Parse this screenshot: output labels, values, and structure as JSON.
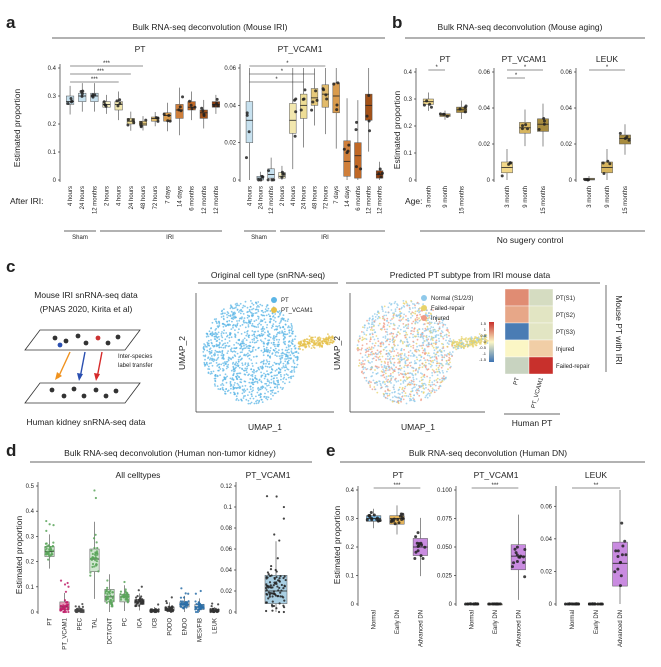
{
  "panels": {
    "a": {
      "letter": "a",
      "title": "Bulk RNA-seq deconvolution (Mouse IRI)",
      "ylabel": "Estimated proportion",
      "row_label": "After IRI:",
      "sub": [
        "PT",
        "PT_VCAM1"
      ],
      "groups": [
        "Sham",
        "IRI"
      ]
    },
    "b": {
      "letter": "b",
      "title": "Bulk RNA-seq deconvolution (Mouse aging)",
      "ylabel": "Estimated proportion",
      "row_label": "Age:",
      "sub": [
        "PT",
        "PT_VCAM1",
        "LEUK"
      ],
      "footer": "No sugery control"
    },
    "c": {
      "letter": "c",
      "left_title": "Mouse IRI snRNA-seq data",
      "left_sub": "(PNAS 2020, Kirita et al)",
      "transfer": "Inter-species label transfer",
      "transfer_lines": [
        "Inter-species",
        "label transfer"
      ],
      "bottom_label": "Human kidney snRNA-seq data",
      "umap1_title": "Original cell type (snRNA-seq)",
      "umap2_title": "Predicted PT subtype from IRI mouse data",
      "xlabel": "UMAP_1",
      "ylabel": "UMAP_2",
      "legend1": [
        "PT",
        "PT_VCAM1"
      ],
      "legend2": [
        "Normal (S1/2/3)",
        "Failed-repair",
        "Injured"
      ],
      "heat_rows": [
        "PT(S1)",
        "PT(S2)",
        "PT(S3)",
        "Injured",
        "Failed-repair"
      ],
      "heat_cols": [
        "PT",
        "PT_VCAM1"
      ],
      "heat_side": "Mouse PT with IRI",
      "heat_bottom": "Human PT",
      "colorbar_ticks": [
        "1.5",
        "1",
        "0.5",
        "0",
        "-0.5",
        "-1",
        "-1.5"
      ]
    },
    "d": {
      "letter": "d",
      "title": "Bulk RNA-seq deconvolution (Human non-tumor kidney)",
      "sub": [
        "All celltypes",
        "PT_VCAM1"
      ],
      "ylabel": "Estimated proportion"
    },
    "e": {
      "letter": "e",
      "title": "Bulk RNA-seq deconvolution (Human DN)",
      "sub": [
        "PT",
        "PT_VCAM1",
        "LEUK"
      ],
      "ylabel": "Estimated proportion"
    }
  },
  "colors": {
    "pt": "#5bb5e6",
    "pt_vcam1": "#e6c04a",
    "normal": "#8fc9ea",
    "failed": "#e7d36a",
    "injured": "#ef9a84",
    "box_purple": "#c98be0",
    "box_blue": "#a9cfe3",
    "label_red": "#b0202f"
  },
  "chart_data": [
    {
      "id": "a-PT",
      "type": "box",
      "title": "PT",
      "ylim": [
        0,
        0.4
      ],
      "yticks": [
        "0",
        "0.1",
        "0.2",
        "0.3",
        "0.4"
      ],
      "categories": [
        "4 hours",
        "24 hours",
        "12 months",
        "2 hours",
        "4 hours",
        "24 hours",
        "48 hours",
        "72 hours",
        "7 days",
        "14 days",
        "6 months",
        "12 months",
        "12 months"
      ],
      "medians": [
        0.28,
        0.3,
        0.3,
        0.27,
        0.27,
        0.21,
        0.2,
        0.22,
        0.23,
        0.25,
        0.26,
        0.24,
        0.27
      ],
      "q1": [
        0.27,
        0.28,
        0.28,
        0.26,
        0.25,
        0.2,
        0.195,
        0.21,
        0.21,
        0.22,
        0.25,
        0.22,
        0.26
      ],
      "q3": [
        0.3,
        0.31,
        0.31,
        0.28,
        0.28,
        0.22,
        0.21,
        0.225,
        0.24,
        0.27,
        0.28,
        0.25,
        0.28
      ],
      "box_colors": [
        "#c7e1ef",
        "#c7e1ef",
        "#c7e1ef",
        "#f6efc4",
        "#f2e7ae",
        "#eedd95",
        "#e6c97a",
        "#e2bb6b",
        "#d99b4d",
        "#cf7f3b",
        "#c06826",
        "#a45218",
        "#8b3c0e"
      ],
      "significance": [
        {
          "from": 0,
          "to": 6,
          "label": "***"
        },
        {
          "from": 0,
          "to": 5,
          "label": "***"
        },
        {
          "from": 0,
          "to": 4,
          "label": "***"
        }
      ]
    },
    {
      "id": "a-PT_VCAM1",
      "type": "box",
      "title": "PT_VCAM1",
      "ylim": [
        0,
        0.06
      ],
      "yticks": [
        "0",
        "0.02",
        "0.04",
        "0.06"
      ],
      "categories": [
        "4 hours",
        "24 hours",
        "12 months",
        "2 hours",
        "4 hours",
        "24 hours",
        "48 hours",
        "72 hours",
        "7 days",
        "14 days",
        "6 months",
        "12 months",
        "12 months"
      ],
      "medians": [
        0.032,
        0.001,
        0.003,
        0.002,
        0.032,
        0.04,
        0.044,
        0.046,
        0.045,
        0.01,
        0.013,
        0.04,
        0.003
      ],
      "q1": [
        0.02,
        0.0,
        0.001,
        0.001,
        0.025,
        0.033,
        0.04,
        0.039,
        0.036,
        0.002,
        0.001,
        0.032,
        0.001
      ],
      "q3": [
        0.042,
        0.002,
        0.006,
        0.004,
        0.041,
        0.046,
        0.049,
        0.051,
        0.052,
        0.021,
        0.02,
        0.046,
        0.005
      ],
      "box_colors": [
        "#c7e1ef",
        "#c7e1ef",
        "#c7e1ef",
        "#f6efc4",
        "#f2e7ae",
        "#eedd95",
        "#e6c97a",
        "#e2bb6b",
        "#d99b4d",
        "#cf7f3b",
        "#c06826",
        "#a45218",
        "#8b3c0e"
      ],
      "significance": [
        {
          "from": 0,
          "to": 7,
          "label": "*"
        },
        {
          "from": 0,
          "to": 6,
          "label": "*"
        },
        {
          "from": 0,
          "to": 5,
          "label": "*"
        }
      ]
    },
    {
      "id": "b-PT",
      "type": "box",
      "title": "PT",
      "ylim": [
        0,
        0.4
      ],
      "yticks": [
        "0",
        "0.1",
        "0.2",
        "0.3",
        "0.4"
      ],
      "categories": [
        "3 month",
        "9 month",
        "15 months"
      ],
      "medians": [
        0.29,
        0.24,
        0.26
      ],
      "q1": [
        0.28,
        0.235,
        0.25
      ],
      "q3": [
        0.3,
        0.245,
        0.27
      ],
      "box_colors": [
        "#f2d889",
        "#d7b55f",
        "#a88c3f"
      ],
      "significance": [
        {
          "from": 0,
          "to": 1,
          "label": "*"
        }
      ]
    },
    {
      "id": "b-PT_VCAM1",
      "type": "box",
      "title": "PT_VCAM1",
      "ylim": [
        0,
        0.06
      ],
      "yticks": [
        "0",
        "0.02",
        "0.04",
        "0.06"
      ],
      "categories": [
        "3 month",
        "9 month",
        "15 months"
      ],
      "medians": [
        0.007,
        0.029,
        0.031
      ],
      "q1": [
        0.004,
        0.026,
        0.027
      ],
      "q3": [
        0.01,
        0.032,
        0.034
      ],
      "box_colors": [
        "#f2d889",
        "#d7b55f",
        "#a88c3f"
      ],
      "significance": [
        {
          "from": 0,
          "to": 2,
          "label": "*"
        },
        {
          "from": 0,
          "to": 1,
          "label": "*"
        }
      ]
    },
    {
      "id": "b-LEUK",
      "type": "box",
      "title": "LEUK",
      "ylim": [
        0,
        0.06
      ],
      "yticks": [
        "0",
        "0.02",
        "0.04",
        "0.06"
      ],
      "categories": [
        "3 month",
        "9 month",
        "15 months"
      ],
      "medians": [
        0.0005,
        0.007,
        0.023
      ],
      "q1": [
        0.0,
        0.004,
        0.02
      ],
      "q3": [
        0.001,
        0.01,
        0.025
      ],
      "box_colors": [
        "#f2d889",
        "#d7b55f",
        "#a88c3f"
      ],
      "significance": [
        {
          "from": 0,
          "to": 2,
          "label": "*"
        }
      ]
    },
    {
      "id": "c-heatmap",
      "type": "heatmap",
      "rows": [
        "PT(S1)",
        "PT(S2)",
        "PT(S3)",
        "Injured",
        "Failed-repair"
      ],
      "cols": [
        "PT",
        "PT_VCAM1"
      ],
      "values": [
        [
          0.8,
          -0.3
        ],
        [
          0.6,
          -0.2
        ],
        [
          -1.4,
          -0.2
        ],
        [
          0.0,
          0.3
        ],
        [
          -0.4,
          1.5
        ]
      ]
    },
    {
      "id": "d-all",
      "type": "box",
      "title": "All celltypes",
      "ylim": [
        0,
        0.5
      ],
      "yticks": [
        "0",
        "0.1",
        "0.2",
        "0.3",
        "0.4",
        "0.5"
      ],
      "categories": [
        "PT",
        "PT_VCAM1",
        "PEC",
        "TAL",
        "DCT/CNT",
        "PC",
        "ICA",
        "ICB",
        "PODO",
        "ENDO",
        "MES/FIB",
        "LEUK"
      ],
      "medians": [
        0.24,
        0.02,
        0.005,
        0.21,
        0.06,
        0.06,
        0.04,
        0.005,
        0.01,
        0.03,
        0.02,
        0.005
      ],
      "q1": [
        0.22,
        0.01,
        0.002,
        0.16,
        0.04,
        0.04,
        0.03,
        0.002,
        0.005,
        0.02,
        0.01,
        0.002
      ],
      "q3": [
        0.26,
        0.04,
        0.01,
        0.25,
        0.09,
        0.07,
        0.05,
        0.01,
        0.02,
        0.04,
        0.03,
        0.01
      ],
      "box_colors": [
        "#cfe7cf",
        "#e79ab9",
        "#e5e5e5",
        "#cfe7cf",
        "#cfe7cf",
        "#cfe7cf",
        "#e5e5e5",
        "#e5e5e5",
        "#e5e5e5",
        "#e5e5e5",
        "#e5e5e5",
        "#e5e5e5"
      ],
      "dot_colors": [
        "#5aa55a",
        "#c0206a",
        "#444444",
        "#5aa55a",
        "#5aa55a",
        "#5aa55a",
        "#333333",
        "#333333",
        "#333333",
        "#2a6fa8",
        "#2a6fa8",
        "#333333"
      ]
    },
    {
      "id": "d-vcam1",
      "type": "box",
      "title": "PT_VCAM1",
      "ylim": [
        0,
        0.12
      ],
      "yticks": [
        "0",
        "0.02",
        "0.04",
        "0.06",
        "0.08",
        "0.1",
        "0.12"
      ],
      "categories": [
        ""
      ],
      "medians": [
        0.02
      ],
      "q1": [
        0.008
      ],
      "q3": [
        0.035
      ],
      "box_colors": [
        "#a9cfe3"
      ]
    },
    {
      "id": "e-PT",
      "type": "box",
      "title": "PT",
      "ylim": [
        0,
        0.4
      ],
      "yticks": [
        "0",
        "0.1",
        "0.2",
        "0.3",
        "0.4"
      ],
      "categories": [
        "Normal",
        "Early DN",
        "Advanced DN"
      ],
      "medians": [
        0.3,
        0.3,
        0.2
      ],
      "q1": [
        0.29,
        0.28,
        0.17
      ],
      "q3": [
        0.31,
        0.31,
        0.23
      ],
      "box_colors": [
        "#7cb7df",
        "#e3b35a",
        "#c98be0"
      ],
      "significance": [
        {
          "from": 0,
          "to": 2,
          "label": "***"
        }
      ]
    },
    {
      "id": "e-PT_VCAM1",
      "type": "box",
      "title": "PT_VCAM1",
      "ylim": [
        0,
        0.1
      ],
      "yticks": [
        "0",
        "0.025",
        "0.050",
        "0.075",
        "0.100"
      ],
      "categories": [
        "Normal",
        "Early DN",
        "Advanced DN"
      ],
      "medians": [
        0.0,
        0.0,
        0.042
      ],
      "q1": [
        0.0,
        0.0,
        0.03
      ],
      "q3": [
        0.0,
        0.0,
        0.052
      ],
      "box_colors": [
        "#7cb7df",
        "#e3b35a",
        "#c98be0"
      ],
      "significance": [
        {
          "from": 0,
          "to": 2,
          "label": "***"
        }
      ]
    },
    {
      "id": "e-LEUK",
      "type": "box",
      "title": "LEUK",
      "ylim": [
        0,
        0.07
      ],
      "yticks": [
        "0",
        "0.02",
        "0.04",
        "0.06"
      ],
      "categories": [
        "Normal",
        "Early DN",
        "Advanced DN"
      ],
      "medians": [
        0.0,
        0.0,
        0.025
      ],
      "q1": [
        0.0,
        0.0,
        0.011
      ],
      "q3": [
        0.0,
        0.0,
        0.038
      ],
      "box_colors": [
        "#7cb7df",
        "#e3b35a",
        "#c98be0"
      ],
      "significance": [
        {
          "from": 0,
          "to": 2,
          "label": "**"
        }
      ]
    }
  ]
}
